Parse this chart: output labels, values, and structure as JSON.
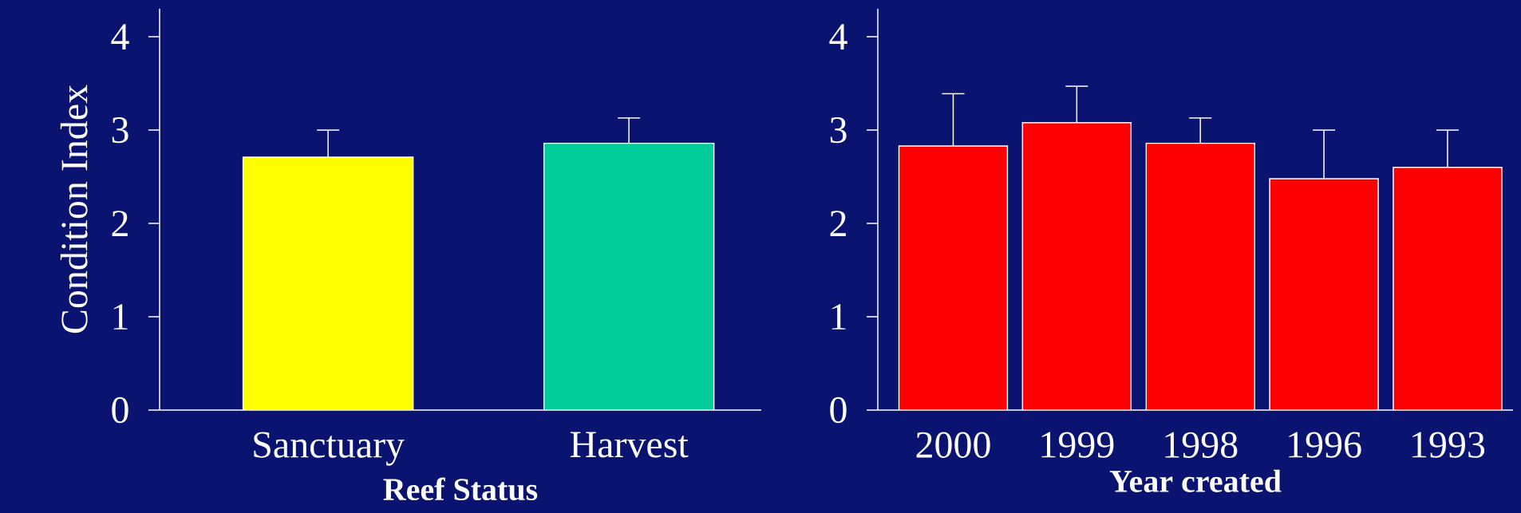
{
  "chart_data": [
    {
      "type": "bar",
      "ylabel": "Condition Index",
      "xlabel": "Reef Status",
      "categories": [
        "Sanctuary",
        "Harvest"
      ],
      "values": [
        2.71,
        2.86
      ],
      "colors": [
        "#ffff00",
        "#00cc99"
      ],
      "errors": [
        [
          2.71,
          3.0
        ],
        [
          2.86,
          3.13
        ]
      ],
      "ylim": [
        0,
        4.3
      ],
      "yticks": [
        0,
        1,
        2,
        3,
        4
      ]
    },
    {
      "type": "bar",
      "xlabel": "Year created",
      "categories": [
        "2000",
        "1999",
        "1998",
        "1996",
        "1993"
      ],
      "values": [
        2.83,
        3.08,
        2.86,
        2.48,
        2.6
      ],
      "color": "#ff0000",
      "errors": [
        [
          2.83,
          3.39
        ],
        [
          3.08,
          3.47
        ],
        [
          2.86,
          3.13
        ],
        [
          2.48,
          3.0
        ],
        [
          2.6,
          3.0
        ]
      ],
      "ylim": [
        0,
        4.3
      ],
      "yticks": [
        0,
        1,
        2,
        3,
        4
      ]
    }
  ]
}
